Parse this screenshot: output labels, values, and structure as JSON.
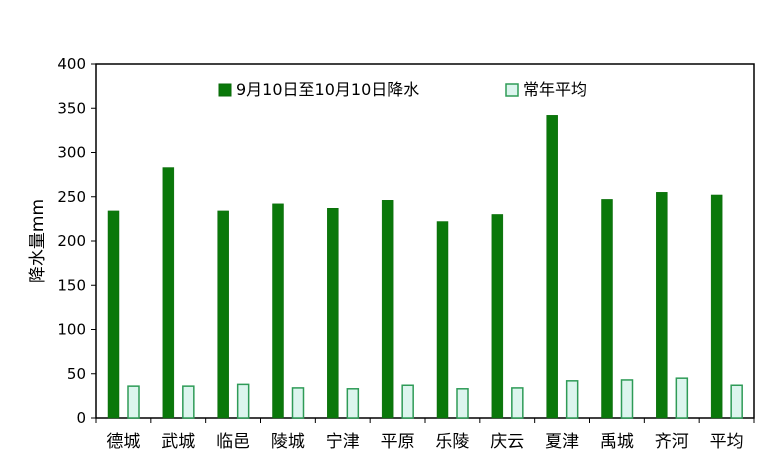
{
  "chart_data": {
    "type": "bar",
    "title": "",
    "xlabel": "",
    "ylabel": "降水量mm",
    "ylim": [
      0,
      400
    ],
    "yticks": [
      0,
      50,
      100,
      150,
      200,
      250,
      300,
      350,
      400
    ],
    "grid": false,
    "legend_position": "top",
    "categories": [
      "德城",
      "武城",
      "临邑",
      "陵城",
      "宁津",
      "平原",
      "乐陵",
      "庆云",
      "夏津",
      "禹城",
      "齐河",
      "平均"
    ],
    "series": [
      {
        "name": "9月10日至10月10日降水",
        "color": "#0a780a",
        "values": [
          234,
          283,
          234,
          242,
          237,
          246,
          222,
          230,
          342,
          247,
          255,
          252
        ]
      },
      {
        "name": "常年平均",
        "color": "#dcf5ee",
        "stroke": "#2e9b57",
        "values": [
          36,
          36,
          38,
          34,
          33,
          37,
          33,
          34,
          42,
          43,
          45,
          37
        ]
      }
    ]
  }
}
